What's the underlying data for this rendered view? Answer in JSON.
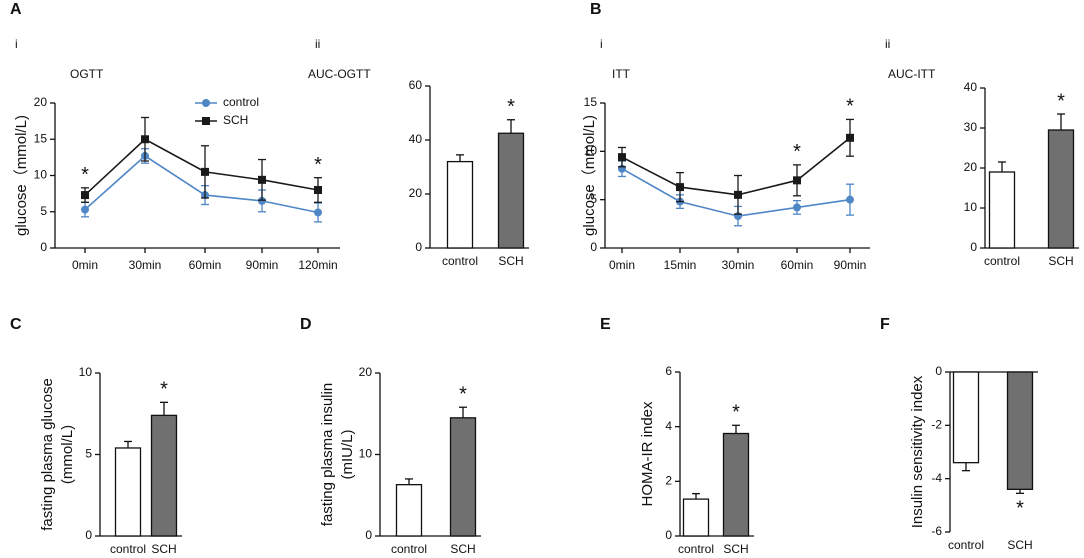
{
  "chart_data": [
    {
      "panel": "A",
      "subpanel": "i",
      "type": "line",
      "title": "OGTT",
      "ylabel": [
        "glucose（mmol/L)"
      ],
      "categories": [
        "0min",
        "30min",
        "60min",
        "90min",
        "120min"
      ],
      "series": [
        {
          "name": "control",
          "color": "#4f86c6",
          "marker": "circle",
          "values": [
            5.3,
            12.7,
            7.3,
            6.5,
            4.9
          ],
          "errors": [
            1.0,
            1.0,
            1.3,
            1.5,
            1.3
          ]
        },
        {
          "name": "SCH",
          "color": "#1a1a1a",
          "marker": "square",
          "values": [
            7.3,
            15.0,
            10.5,
            9.4,
            8.0
          ],
          "errors": [
            1.0,
            3.0,
            3.6,
            2.8,
            1.7
          ]
        }
      ],
      "ylim": [
        0,
        20
      ],
      "yticks": [
        0,
        5,
        10,
        15,
        20
      ],
      "legend": "upper right",
      "annotations": [
        {
          "text": "*",
          "x": "0min"
        },
        {
          "text": "*",
          "x": "120min"
        }
      ]
    },
    {
      "subpanel": "ii",
      "type": "bar",
      "title": "AUC-OGTT",
      "categories": [
        "control",
        "SCH"
      ],
      "colors": [
        "#ffffff",
        "#707070"
      ],
      "values": [
        32,
        42.5
      ],
      "errors": [
        2.5,
        5
      ],
      "ylim": [
        0,
        60
      ],
      "yticks": [
        0,
        20,
        40,
        60
      ],
      "annotations": [
        {
          "text": "*",
          "x": "SCH"
        }
      ]
    },
    {
      "panel": "B",
      "subpanel": "i",
      "type": "line",
      "title": "ITT",
      "ylabel": [
        "glucose（mmol/L)"
      ],
      "categories": [
        "0min",
        "15min",
        "30min",
        "60min",
        "90min"
      ],
      "series": [
        {
          "color": "#4f86c6",
          "marker": "circle",
          "values": [
            8.2,
            4.8,
            3.3,
            4.2,
            5.0
          ],
          "errors": [
            0.8,
            0.7,
            1.0,
            0.7,
            1.6
          ]
        },
        {
          "color": "#1a1a1a",
          "marker": "square",
          "values": [
            9.4,
            6.3,
            5.5,
            7.0,
            11.4
          ],
          "errors": [
            1.0,
            1.5,
            2.0,
            1.6,
            1.9
          ]
        }
      ],
      "ylim": [
        0,
        15
      ],
      "yticks": [
        0,
        5,
        10,
        15
      ],
      "annotations": [
        {
          "text": "*",
          "x": "60min"
        },
        {
          "text": "*",
          "x": "90min"
        }
      ]
    },
    {
      "subpanel": "ii",
      "type": "bar",
      "title": "AUC-ITT",
      "categories": [
        "control",
        "SCH"
      ],
      "colors": [
        "#ffffff",
        "#707070"
      ],
      "values": [
        19,
        29.5
      ],
      "errors": [
        2.5,
        4
      ],
      "ylim": [
        0,
        40
      ],
      "yticks": [
        0,
        10,
        20,
        30,
        40
      ],
      "annotations": [
        {
          "text": "*",
          "x": "SCH"
        }
      ]
    },
    {
      "panel": "C",
      "type": "bar",
      "ylabel": [
        "fasting plasma glucose",
        "(mmol/L)"
      ],
      "categories": [
        "control",
        "SCH"
      ],
      "colors": [
        "#ffffff",
        "#707070"
      ],
      "values": [
        5.4,
        7.4
      ],
      "errors": [
        0.4,
        0.8
      ],
      "ylim": [
        0,
        10
      ],
      "yticks": [
        0,
        5,
        10
      ],
      "annotations": [
        {
          "text": "*",
          "x": "SCH"
        }
      ]
    },
    {
      "panel": "D",
      "type": "bar",
      "ylabel": [
        "fasting plasma insulin",
        "(mIU/L)"
      ],
      "categories": [
        "control",
        "SCH"
      ],
      "colors": [
        "#ffffff",
        "#707070"
      ],
      "values": [
        6.3,
        14.5
      ],
      "errors": [
        0.7,
        1.3
      ],
      "ylim": [
        0,
        20
      ],
      "yticks": [
        0,
        10,
        20
      ],
      "annotations": [
        {
          "text": "*",
          "x": "SCH"
        }
      ]
    },
    {
      "panel": "E",
      "type": "bar",
      "ylabel": [
        "HOMA-IR index"
      ],
      "categories": [
        "control",
        "SCH"
      ],
      "colors": [
        "#ffffff",
        "#707070"
      ],
      "values": [
        1.35,
        3.75
      ],
      "errors": [
        0.2,
        0.3
      ],
      "ylim": [
        0,
        6
      ],
      "yticks": [
        0,
        2,
        4,
        6
      ],
      "annotations": [
        {
          "text": "*",
          "x": "SCH"
        }
      ]
    },
    {
      "panel": "F",
      "type": "bar",
      "ylabel": [
        "Insulin sensitivity index"
      ],
      "categories": [
        "control",
        "SCH"
      ],
      "colors": [
        "#ffffff",
        "#707070"
      ],
      "values": [
        -3.4,
        -4.4
      ],
      "errors": [
        0.3,
        0.15
      ],
      "ylim": [
        -6,
        0
      ],
      "yticks": [
        0,
        -2,
        -4,
        -6
      ],
      "annotations": [
        {
          "text": "*",
          "x": "SCH"
        }
      ]
    }
  ]
}
